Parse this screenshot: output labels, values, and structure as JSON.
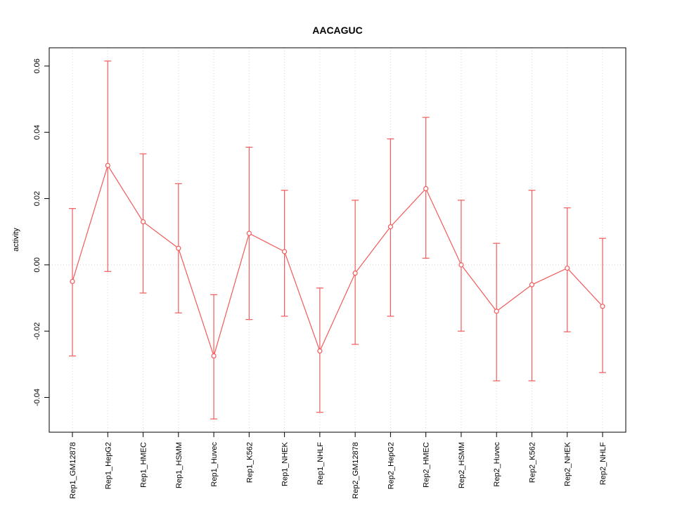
{
  "chart_data": {
    "type": "line",
    "title": "AACAGUC",
    "xlabel": "",
    "ylabel": "activity",
    "categories": [
      "Rep1_GM12878",
      "Rep1_HepG2",
      "Rep1_HMEC",
      "Rep1_HSMM",
      "Rep1_Huvec",
      "Rep1_K562",
      "Rep1_NHEK",
      "Rep1_NHLF",
      "Rep2_GM12878",
      "Rep2_HepG2",
      "Rep2_HMEC",
      "Rep2_HSMM",
      "Rep2_Huvec",
      "Rep2_K562",
      "Rep2_NHEK",
      "Rep2_NHLF"
    ],
    "values": [
      -0.005,
      0.03,
      0.013,
      0.005,
      -0.0275,
      0.0095,
      0.004,
      -0.026,
      -0.0025,
      0.0115,
      0.023,
      0.0,
      -0.014,
      -0.006,
      -0.001,
      -0.0125
    ],
    "ci_lower": [
      -0.0275,
      -0.002,
      -0.0085,
      -0.0145,
      -0.0465,
      -0.0165,
      -0.0155,
      -0.0445,
      -0.024,
      -0.0155,
      0.002,
      -0.02,
      -0.035,
      -0.035,
      -0.0202,
      -0.0325
    ],
    "ci_upper": [
      0.017,
      0.0615,
      0.0335,
      0.0245,
      -0.009,
      0.0355,
      0.0225,
      -0.007,
      0.0195,
      0.038,
      0.0445,
      0.0195,
      0.0065,
      0.0225,
      0.0172,
      0.008
    ],
    "ylim": [
      -0.0505,
      0.0655
    ],
    "yticks": [
      -0.04,
      -0.02,
      0.0,
      0.02,
      0.04,
      0.06
    ],
    "ytick_labels": [
      "-0.04",
      "-0.02",
      "0.00",
      "0.02",
      "0.04",
      "0.06"
    ],
    "grid": "dotted vertical gridline at each category; dotted horizontal line at zero",
    "legend": "none",
    "colors": {
      "series": "#f15b5b",
      "grid": "#d4d4d4",
      "zero_line": "#cfcfcf",
      "axis": "#000000",
      "background": "#ffffff"
    }
  }
}
